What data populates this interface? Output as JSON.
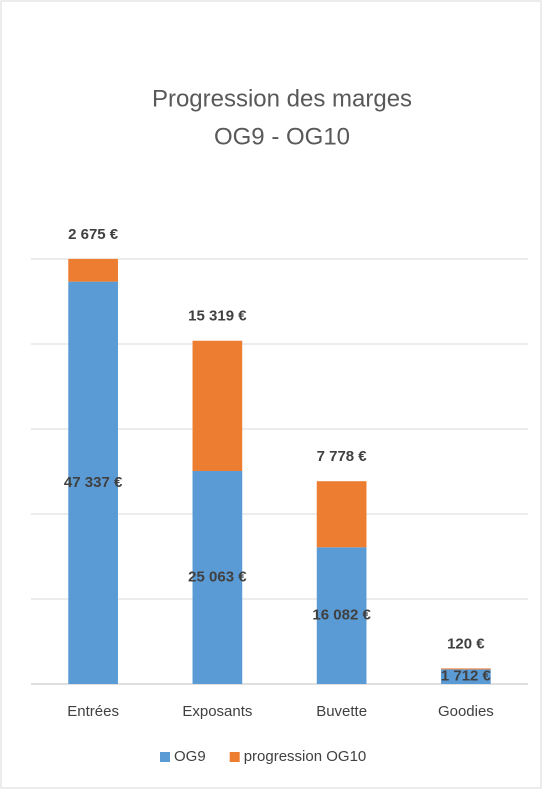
{
  "chart_data": {
    "type": "stacked_bar",
    "title": [
      "Progression des marges",
      "OG9 - OG10"
    ],
    "categories": [
      "Entrées",
      "Exposants",
      "Buvette",
      "Goodies"
    ],
    "series": [
      {
        "name": "OG9",
        "color": "#5b9bd5",
        "values": [
          47337,
          25063,
          16082,
          1712
        ],
        "value_labels": [
          "47 337 €",
          "25 063 €",
          "16 082 €",
          "1 712 €"
        ]
      },
      {
        "name": "progression OG10",
        "color": "#ed7d31",
        "values": [
          2675,
          15319,
          7778,
          120
        ],
        "value_labels": [
          "2 675 €",
          "15 319 €",
          "7 778 €",
          "120 €"
        ]
      }
    ],
    "ylim": [
      0,
      50000
    ],
    "yticks": [
      0,
      10000,
      20000,
      30000,
      40000,
      50000
    ],
    "grid": true,
    "legend": "bottom"
  }
}
